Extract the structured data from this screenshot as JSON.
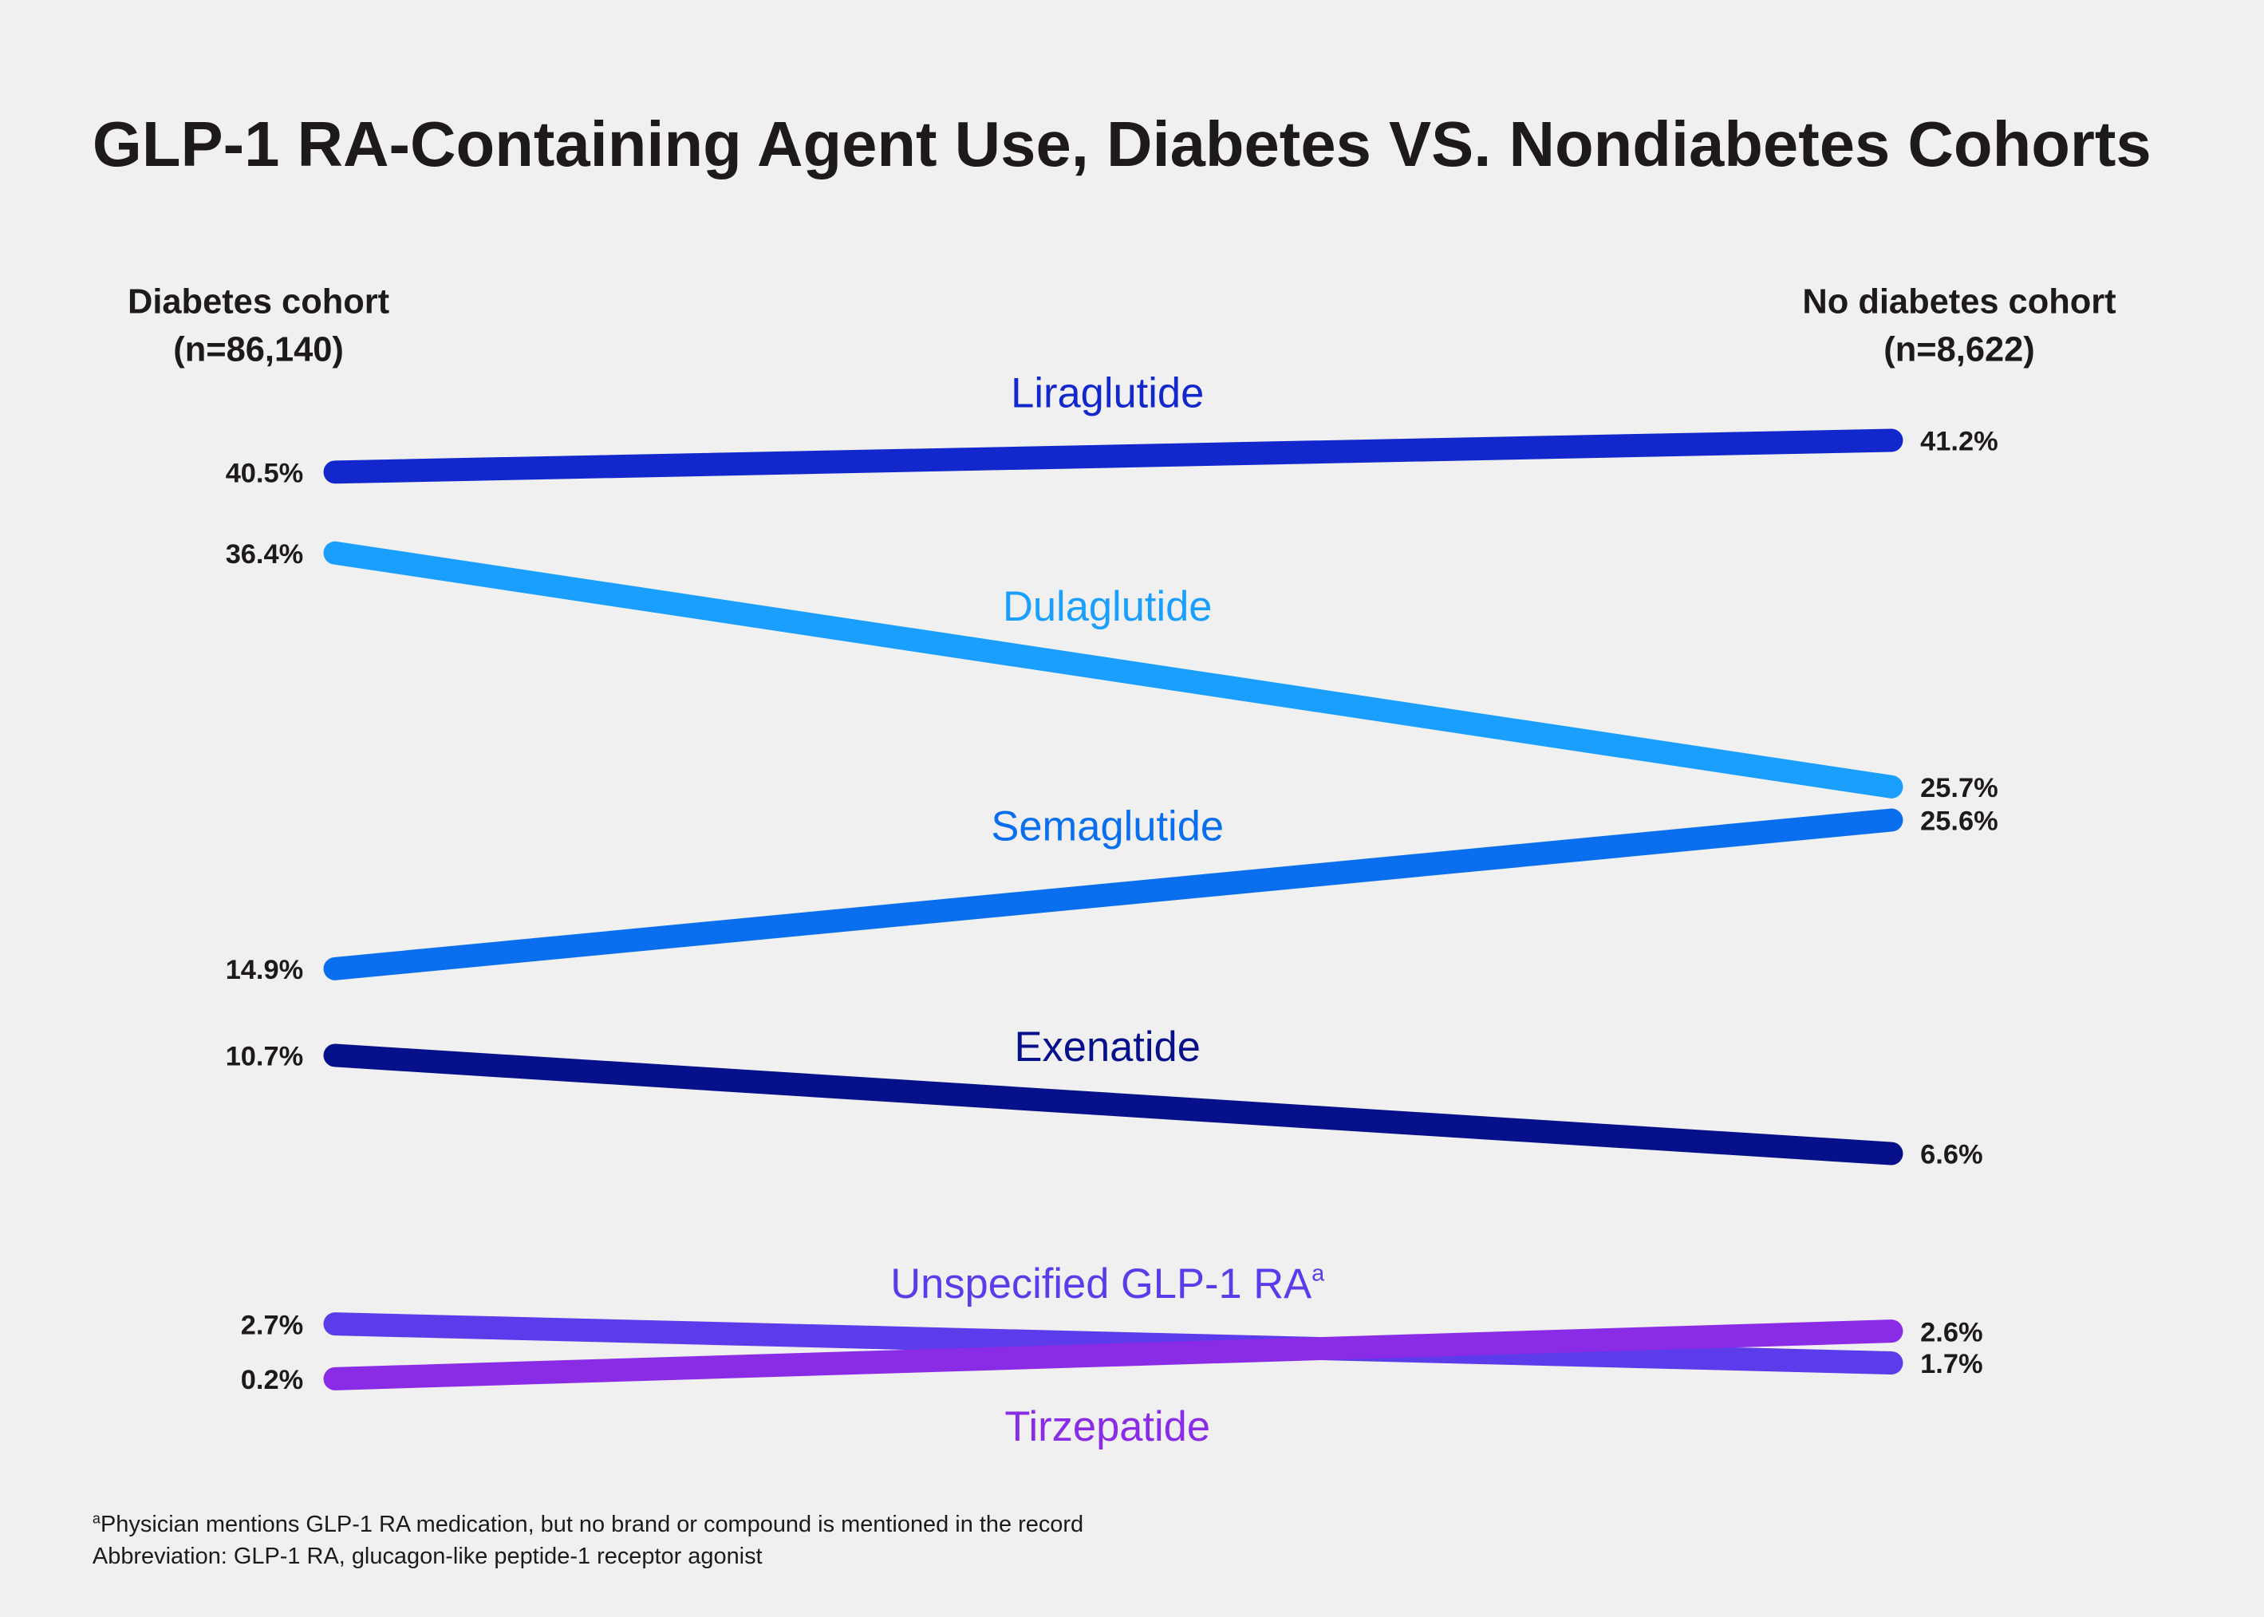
{
  "chart_data": {
    "type": "line",
    "subtype": "slope",
    "title": "GLP-1 RA-Containing Agent Use, Diabetes VS. Nondiabetes Cohorts",
    "categories": [
      {
        "label": "Diabetes cohort",
        "n": "(n=86,140)"
      },
      {
        "label": "No diabetes cohort",
        "n": "(n=8,622)"
      }
    ],
    "unit": "%",
    "series": [
      {
        "name": "Liraglutide",
        "sup": "",
        "values": [
          40.5,
          41.2
        ],
        "labels": [
          "40.5%",
          "41.2%"
        ],
        "color": "#1228CC"
      },
      {
        "name": "Dulaglutide",
        "sup": "",
        "values": [
          36.4,
          25.7
        ],
        "labels": [
          "36.4%",
          "25.7%"
        ],
        "color": "#1A9FFF"
      },
      {
        "name": "Semaglutide",
        "sup": "",
        "values": [
          14.9,
          25.6
        ],
        "labels": [
          "14.9%",
          "25.6%"
        ],
        "color": "#0A6FEF"
      },
      {
        "name": "Exenatide",
        "sup": "",
        "values": [
          10.7,
          6.6
        ],
        "labels": [
          "10.7%",
          "6.6%"
        ],
        "color": "#06108A"
      },
      {
        "name": "Unspecified GLP-1 RA",
        "sup": "a",
        "values": [
          2.7,
          1.7
        ],
        "labels": [
          "2.7%",
          "1.7%"
        ],
        "color": "#5B3BEA"
      },
      {
        "name": "Tirzepatide",
        "sup": "",
        "values": [
          0.2,
          2.6
        ],
        "labels": [
          "0.2%",
          "2.6%"
        ],
        "color": "#8A2BE6"
      }
    ],
    "grid": false,
    "legend": "inline labels"
  },
  "footnotes": {
    "a_mark": "a",
    "a_text": "Physician mentions GLP-1 RA medication, but no brand or compound is mentioned in the record",
    "abbreviation": "Abbreviation: GLP-1 RA, glucagon-like peptide-1 receptor agonist"
  },
  "background": "#F0F0F0"
}
